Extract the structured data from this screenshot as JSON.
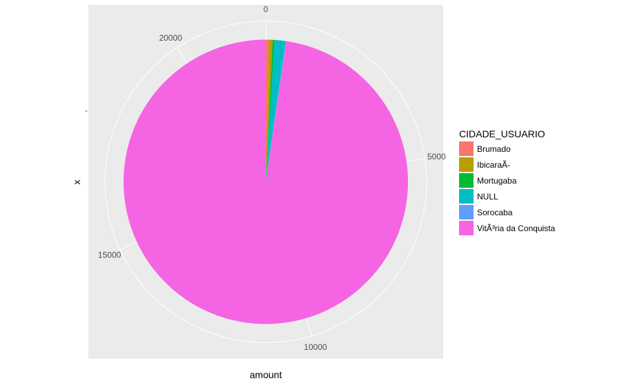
{
  "chart_data": {
    "type": "pie",
    "coord": "polar",
    "xlabel": "amount",
    "ylabel": "x",
    "theta_axis": {
      "max": 22050,
      "ticks": [
        0,
        5000,
        10000,
        15000,
        20000
      ],
      "tick_labels": [
        "0",
        "5000",
        "10000",
        "15000",
        "20000"
      ]
    },
    "radial_tick_label": "-",
    "legend": {
      "title": "CIDADE_USUARIO",
      "position": "right"
    },
    "slices": [
      {
        "name": "Brumado",
        "value": 80,
        "color": "#F8766D"
      },
      {
        "name": "IbicaraÃ-",
        "value": 90,
        "color": "#B79F00"
      },
      {
        "name": "Mortugaba",
        "value": 50,
        "color": "#00BA38"
      },
      {
        "name": "NULL",
        "value": 270,
        "color": "#00BFC4"
      },
      {
        "name": "Sorocaba",
        "value": 20,
        "color": "#619CFF"
      },
      {
        "name": "VitÃ³ria da Conquista",
        "value": 21540,
        "color": "#F564E3"
      }
    ],
    "panel_background": "#EBEBEB",
    "grid_color": "#FFFFFF"
  }
}
